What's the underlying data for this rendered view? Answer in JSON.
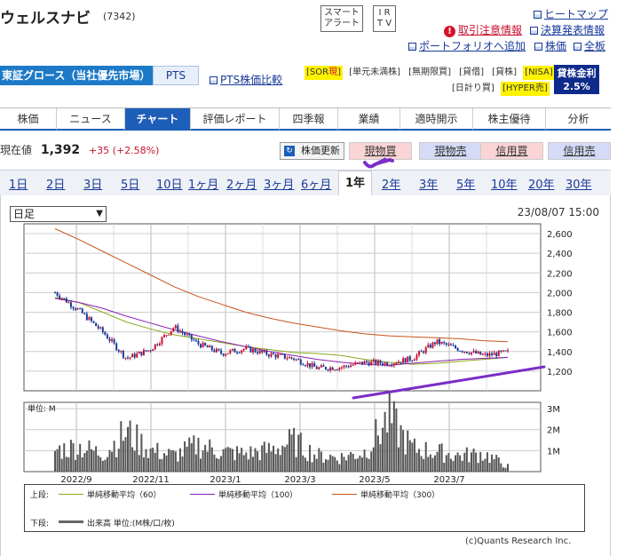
{
  "header": {
    "company_name": "ウェルスナビ",
    "ticker_code": "(7342)",
    "smart_alert": [
      "スマート",
      "アラート"
    ],
    "irtv": [
      "I R",
      "T V"
    ],
    "links": {
      "heatmap": "ヒートマップ",
      "earnings_info": "決算発表情報",
      "caution_info": "取引注意情報",
      "portfolio_add": "ポートフォリオへ追加",
      "kabuka": "株価",
      "zenban": "全板"
    }
  },
  "market": {
    "exchange": "東証グロース（当社優先市場）",
    "pts": "PTS",
    "pts_compare": "PTS株価比較",
    "tags_row1": [
      "SOR",
      "単元未満株",
      "無期限買",
      "貸借",
      "貸株",
      "NISA"
    ],
    "tag_sor_suffix": "現",
    "tags_row2": [
      "日計り買",
      "HYPER売"
    ],
    "lending_rate_label": "貸株金利",
    "lending_rate_value": "2.5%"
  },
  "nav": {
    "tabs": [
      "株価",
      "ニュース",
      "チャート",
      "評価レポート",
      "四季報",
      "業績",
      "適時開示",
      "株主優待",
      "分析"
    ],
    "active_index": 2
  },
  "price": {
    "label": "現在値",
    "value": "1,392",
    "change": "+35 (+2.58%)",
    "update_button": "株価更新",
    "trade_buttons": [
      "現物買",
      "現物売",
      "信用買",
      "信用売"
    ]
  },
  "periods": {
    "items": [
      "1日",
      "2日",
      "3日",
      "5日",
      "10日",
      "1ヶ月",
      "2ヶ月",
      "3ヶ月",
      "6ヶ月",
      "1年",
      "2年",
      "3年",
      "5年",
      "10年",
      "20年",
      "30年"
    ],
    "active_index": 9
  },
  "chart_controls": {
    "interval": "日足",
    "datetime": "23/08/07 15:00"
  },
  "chart_data": {
    "type": "candlestick",
    "price_axis": {
      "ylim": [
        1000,
        2700
      ],
      "ticks": [
        "2,600",
        "2,400",
        "2,200",
        "2,000",
        "1,800",
        "1,600",
        "1,400",
        "1,200"
      ]
    },
    "volume_axis": {
      "label": "単位: M",
      "ylim": [
        0,
        3300000
      ],
      "ticks": [
        "3M",
        "2M",
        "1M"
      ]
    },
    "x_ticks": [
      "2022/9",
      "2022/11",
      "2023/1",
      "2023/3",
      "2023/5",
      "2023/7"
    ],
    "series": [
      {
        "name": "単純移動平均（60）",
        "color": "#8aa81f",
        "values": [
          1950,
          1900,
          1800,
          1700,
          1630,
          1570,
          1530,
          1490,
          1450,
          1420,
          1390,
          1380,
          1360,
          1320,
          1290,
          1270,
          1280,
          1300,
          1320,
          1340
        ]
      },
      {
        "name": "単純移動平均（100）",
        "color": "#8a1fb0",
        "values": [
          1940,
          1900,
          1840,
          1760,
          1690,
          1620,
          1560,
          1500,
          1450,
          1400,
          1360,
          1320,
          1290,
          1270,
          1260,
          1280,
          1300,
          1320,
          1330,
          1340
        ]
      },
      {
        "name": "単純移動平均（300）",
        "color": "#c8541a",
        "values": [
          2650,
          2540,
          2420,
          2300,
          2180,
          2060,
          1960,
          1880,
          1800,
          1740,
          1690,
          1650,
          1610,
          1580,
          1560,
          1550,
          1540,
          1530,
          1510,
          1500
        ]
      },
      {
        "name": "close",
        "values": [
          2000,
          1820,
          1600,
          1330,
          1420,
          1650,
          1480,
          1380,
          1430,
          1370,
          1330,
          1230,
          1240,
          1290,
          1280,
          1330,
          1500,
          1420,
          1360,
          1392
        ]
      }
    ],
    "volume": [
      1200000,
      1400000,
      1000000,
      2200000,
      1200000,
      900000,
      1500000,
      1100000,
      1000000,
      1200000,
      1700000,
      900000,
      800000,
      1100000,
      3000000,
      1300000,
      1100000,
      900000,
      1000000,
      300000
    ]
  },
  "legend": {
    "upper_label": "上段:",
    "lower_label": "下段:",
    "sma60": "単純移動平均（60）",
    "sma100": "単純移動平均（100）",
    "sma300": "単純移動平均（300）",
    "volume": "出来高 単位:(M株/口/枚)"
  },
  "colors": {
    "up": "#c8102e",
    "down": "#1a3a9a",
    "sma60": "#8aa81f",
    "sma100": "#8a1fb0",
    "sma300": "#c8541a",
    "trend": "#7a2ec8"
  },
  "footer": {
    "copyright": "(c)Quants Research Inc."
  }
}
